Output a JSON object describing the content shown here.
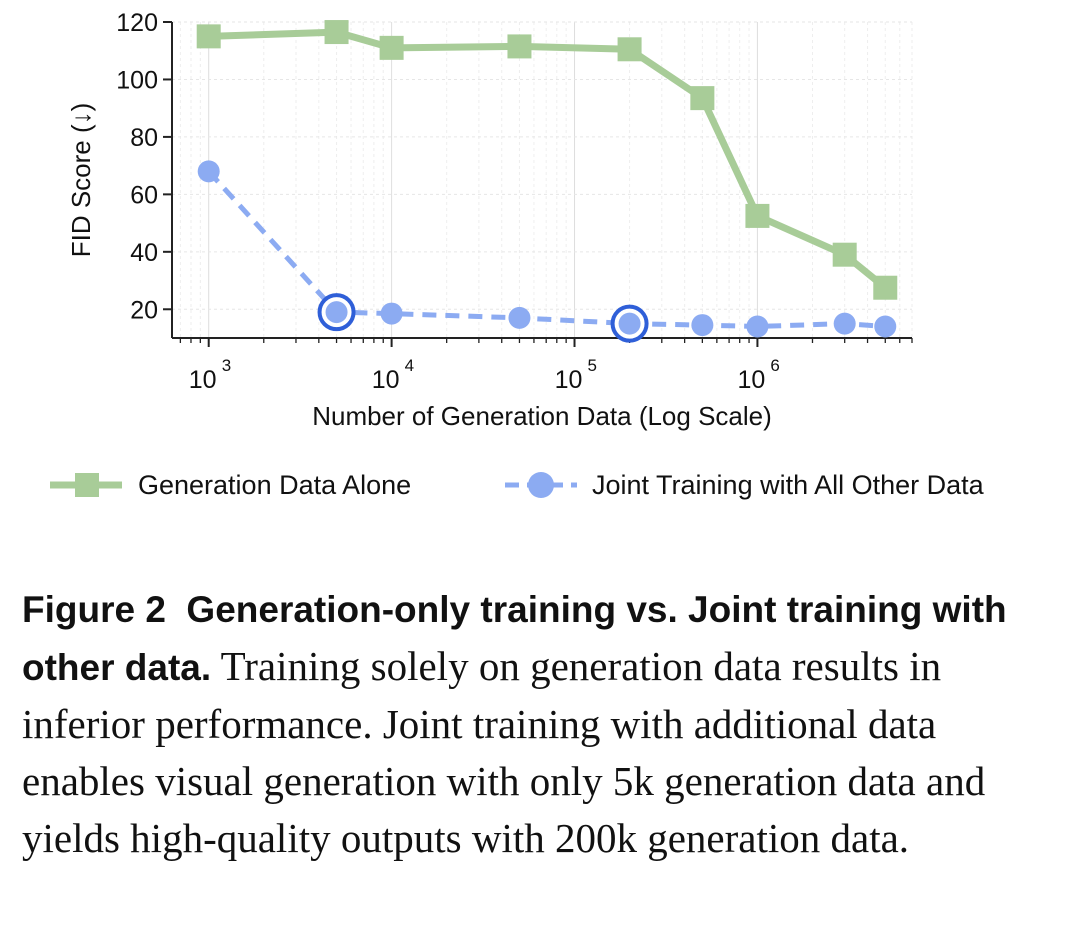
{
  "chart_data": {
    "type": "line",
    "x_scale": "log",
    "xlabel": "Number of Generation Data (Log Scale)",
    "ylabel": "FID Score (↓)",
    "xlim": [
      630,
      7000000
    ],
    "ylim": [
      10,
      120
    ],
    "yticks": [
      20,
      40,
      60,
      80,
      100,
      120
    ],
    "xticks": [
      {
        "value": 1000,
        "base": "10",
        "exp": "3"
      },
      {
        "value": 10000,
        "base": "10",
        "exp": "4"
      },
      {
        "value": 100000,
        "base": "10",
        "exp": "5"
      },
      {
        "value": 1000000,
        "base": "10",
        "exp": "6"
      }
    ],
    "grid": true,
    "legend_position": "bottom",
    "series": [
      {
        "name": "Generation Data Alone",
        "color": "#a8cc98",
        "marker": "square",
        "line_style": "solid",
        "x": [
          1000,
          5000,
          10000,
          50000,
          200000,
          500000,
          1000000,
          3000000,
          5000000
        ],
        "y": [
          115,
          116.5,
          111,
          111.5,
          110.5,
          93.5,
          52.5,
          39,
          27.5
        ]
      },
      {
        "name": "Joint Training with All Other Data",
        "color": "#8cabf2",
        "marker": "circle",
        "line_style": "dashed",
        "highlight_color": "#2f5fd8",
        "highlighted_x": [
          5000,
          200000
        ],
        "x": [
          1000,
          5000,
          10000,
          50000,
          200000,
          500000,
          1000000,
          3000000,
          5000000
        ],
        "y": [
          68,
          19,
          18.5,
          17,
          15,
          14.5,
          14,
          15,
          14
        ]
      }
    ]
  },
  "caption": {
    "label": "Figure 2",
    "title": "Generation-only training vs. Joint training with other data.",
    "text": "Training solely on generation data results in inferior performance. Joint training with additional data enables visual generation with only 5k generation data and yields high-quality outputs with 200k generation data."
  }
}
